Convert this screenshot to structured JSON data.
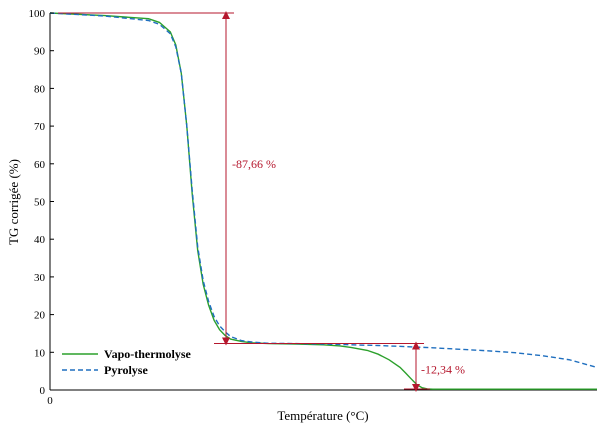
{
  "chart_data": {
    "type": "line",
    "xlabel": "Température (°C)",
    "ylabel": "TG corrigée (%)",
    "ylim": [
      0,
      100
    ],
    "yticks": [
      0,
      10,
      20,
      30,
      40,
      50,
      60,
      70,
      80,
      90,
      100
    ],
    "xticks": [
      0
    ],
    "xlim": [
      0,
      100
    ],
    "grid": false,
    "legend_position": "bottom-left",
    "series": [
      {
        "name": "Vapo-thermolyse",
        "color": "#2ca02c",
        "style": "solid",
        "x": [
          0,
          10,
          18,
          20,
          22,
          23,
          24,
          25,
          26,
          27,
          28,
          29,
          30,
          31,
          32,
          33,
          35,
          37,
          40,
          45,
          50,
          53,
          55,
          58,
          60,
          62,
          64,
          65,
          66,
          67,
          68,
          69,
          70,
          75,
          80,
          85,
          90,
          95,
          100
        ],
        "y": [
          100,
          99.3,
          98.5,
          97.5,
          95,
          91.5,
          84,
          70,
          52,
          37,
          28,
          22.5,
          18.5,
          16,
          14.5,
          13.5,
          12.9,
          12.5,
          12.3,
          12.2,
          12,
          11.7,
          11.3,
          10.5,
          9.5,
          8,
          6,
          4.5,
          3,
          1.5,
          0.6,
          0.3,
          0.2,
          0.2,
          0.2,
          0.2,
          0.2,
          0.2,
          0.2
        ]
      },
      {
        "name": "Pyrolyse",
        "color": "#1f6fbf",
        "style": "dashed",
        "x": [
          0,
          10,
          18,
          20,
          22,
          23,
          24,
          25,
          26,
          27,
          28,
          29,
          30,
          31,
          32,
          33,
          35,
          37,
          40,
          45,
          50,
          55,
          60,
          65,
          70,
          75,
          80,
          85,
          90,
          95,
          100
        ],
        "y": [
          100,
          99.2,
          98,
          97,
          94.5,
          91,
          84,
          70,
          53,
          38,
          29,
          23.5,
          19.5,
          17,
          15.5,
          14.2,
          13.1,
          12.7,
          12.4,
          12.3,
          12.2,
          12,
          11.8,
          11.5,
          11.2,
          10.8,
          10.4,
          9.9,
          9.1,
          8,
          6
        ]
      }
    ],
    "annotations": [
      {
        "text": "-87,66 %",
        "color": "#b5172d"
      },
      {
        "text": "-12,34 %",
        "color": "#b5172d"
      }
    ]
  }
}
